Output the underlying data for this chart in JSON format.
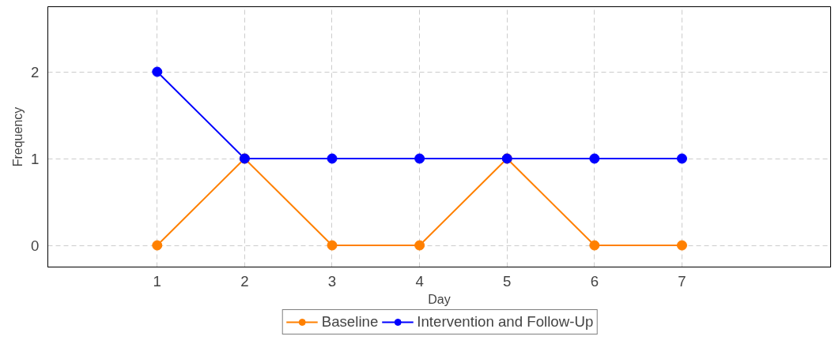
{
  "chart_data": {
    "type": "line",
    "xlabel": "Day",
    "ylabel": "Frequency",
    "x": [
      1,
      2,
      3,
      4,
      5,
      6,
      7
    ],
    "series": [
      {
        "name": "Baseline",
        "color": "#ff8000",
        "values": [
          0,
          1,
          0,
          0,
          1,
          0,
          0
        ]
      },
      {
        "name": "Intervention and Follow-Up",
        "color": "#0000ff",
        "values": [
          2,
          1,
          1,
          1,
          1,
          1,
          1
        ]
      }
    ],
    "xlim": [
      -0.25,
      8.7
    ],
    "ylim": [
      -0.25,
      2.75
    ],
    "xticks": [
      1,
      2,
      3,
      4,
      5,
      6,
      7
    ],
    "yticks": [
      0,
      1,
      2
    ],
    "grid": true,
    "legend": "bottom",
    "marker": "circle",
    "line_style": "solid"
  }
}
